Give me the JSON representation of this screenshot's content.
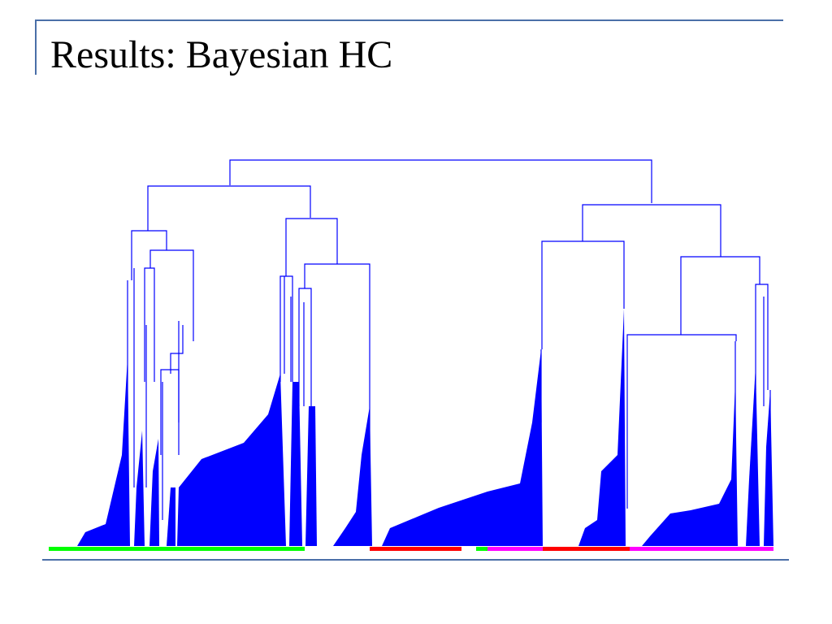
{
  "slide": {
    "title": "Results: Bayesian HC"
  },
  "colors": {
    "frame": "#4a6fa8",
    "dendrogram": "#0000ff",
    "class_green": "#00ff00",
    "class_red": "#ff0000",
    "class_magenta": "#ff00ff",
    "title_text": "#000000"
  },
  "dendrogram": {
    "orientation": "top-down",
    "leaf_class_colors": [
      "green",
      "red",
      "magenta"
    ]
  }
}
